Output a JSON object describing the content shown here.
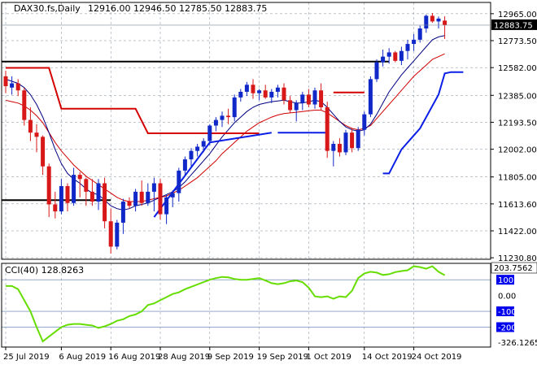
{
  "header": {
    "symbol": "DAX30.fs,Daily",
    "ohlc": "12916.00 12946.50 12785.50 12883.75"
  },
  "price_tag": "12883.75",
  "cci_tag": "203.7562",
  "colors": {
    "bull": "#1028c8",
    "bear": "#d81818",
    "fast_ma": "#000080",
    "slow_ma": "#d00000",
    "stop_red": "#d40000",
    "stop_blue": "#0a1ee6",
    "cci_line": "#66dd00",
    "cci_labels": "#0000cc",
    "level": "#000000",
    "grid": "#7f8c99"
  },
  "chart_data": [
    {
      "type": "candlestick",
      "title": "DAX30.fs,Daily",
      "x_tick_labels": [
        "25 Jul 2019",
        "6 Aug 2019",
        "16 Aug 2019",
        "28 Aug 2019",
        "9 Sep 2019",
        "19 Sep 2019",
        "1 Oct 2019",
        "14 Oct 2019",
        "24 Oct 2019"
      ],
      "x_tick_index": [
        0,
        9,
        17,
        25,
        33,
        41,
        49,
        58,
        66
      ],
      "y_tick_labels": [
        "12965.00",
        "12773.50",
        "12582.00",
        "12385.00",
        "12193.50",
        "12002.00",
        "11805.00",
        "11613.60",
        "11422.00",
        "11230.80"
      ],
      "y_tick_values": [
        12965.0,
        12773.5,
        12582.0,
        12385.0,
        12193.5,
        12002.0,
        11805.0,
        11613.6,
        11422.0,
        11230.8
      ],
      "ylim": [
        11220,
        13045
      ],
      "last_price": 12883.75,
      "ohlc": [
        [
          12520,
          12560,
          12400,
          12450
        ],
        [
          12440,
          12520,
          12390,
          12470
        ],
        [
          12470,
          12500,
          12380,
          12420
        ],
        [
          12420,
          12440,
          12170,
          12210
        ],
        [
          12210,
          12300,
          12060,
          12120
        ],
        [
          12120,
          12180,
          11980,
          12090
        ],
        [
          12090,
          12100,
          11820,
          11880
        ],
        [
          11880,
          11900,
          11520,
          11610
        ],
        [
          11610,
          11700,
          11510,
          11560
        ],
        [
          11560,
          11790,
          11540,
          11740
        ],
        [
          11740,
          11760,
          11560,
          11620
        ],
        [
          11620,
          11870,
          11600,
          11820
        ],
        [
          11820,
          11840,
          11660,
          11790
        ],
        [
          11790,
          11800,
          11600,
          11700
        ],
        [
          11700,
          11790,
          11600,
          11630
        ],
        [
          11630,
          11790,
          11570,
          11760
        ],
        [
          11760,
          11800,
          11440,
          11490
        ],
        [
          11490,
          11580,
          11260,
          11310
        ],
        [
          11310,
          11500,
          11290,
          11480
        ],
        [
          11480,
          11650,
          11400,
          11630
        ],
        [
          11630,
          11660,
          11580,
          11600
        ],
        [
          11600,
          11720,
          11560,
          11700
        ],
        [
          11700,
          11780,
          11600,
          11620
        ],
        [
          11620,
          11760,
          11600,
          11700
        ],
        [
          11700,
          11800,
          11560,
          11760
        ],
        [
          11760,
          11790,
          11500,
          11540
        ],
        [
          11540,
          11680,
          11470,
          11660
        ],
        [
          11660,
          11710,
          11590,
          11690
        ],
        [
          11690,
          11870,
          11630,
          11850
        ],
        [
          11850,
          11950,
          11810,
          11930
        ],
        [
          11930,
          12010,
          11870,
          11990
        ],
        [
          11990,
          12040,
          11950,
          12020
        ],
        [
          12020,
          12080,
          11980,
          12060
        ],
        [
          12060,
          12180,
          12030,
          12170
        ],
        [
          12170,
          12230,
          12130,
          12210
        ],
        [
          12210,
          12270,
          12160,
          12240
        ],
        [
          12240,
          12290,
          12180,
          12230
        ],
        [
          12230,
          12390,
          12200,
          12370
        ],
        [
          12370,
          12430,
          12340,
          12410
        ],
        [
          12410,
          12480,
          12380,
          12460
        ],
        [
          12460,
          12500,
          12360,
          12400
        ],
        [
          12400,
          12430,
          12350,
          12420
        ],
        [
          12420,
          12460,
          12360,
          12370
        ],
        [
          12370,
          12430,
          12330,
          12410
        ],
        [
          12410,
          12460,
          12370,
          12440
        ],
        [
          12440,
          12470,
          12320,
          12350
        ],
        [
          12350,
          12380,
          12260,
          12280
        ],
        [
          12280,
          12350,
          12200,
          12330
        ],
        [
          12330,
          12410,
          12280,
          12390
        ],
        [
          12390,
          12430,
          12300,
          12320
        ],
        [
          12320,
          12440,
          12290,
          12420
        ],
        [
          12420,
          12470,
          12280,
          12300
        ],
        [
          12300,
          12340,
          11940,
          11990
        ],
        [
          11990,
          12060,
          11880,
          12040
        ],
        [
          12040,
          12080,
          11950,
          11980
        ],
        [
          11980,
          12140,
          11960,
          12120
        ],
        [
          12120,
          12150,
          11980,
          12010
        ],
        [
          12010,
          12160,
          11990,
          12140
        ],
        [
          12140,
          12270,
          12100,
          12250
        ],
        [
          12250,
          12520,
          12230,
          12500
        ],
        [
          12500,
          12640,
          12480,
          12620
        ],
        [
          12620,
          12710,
          12590,
          12660
        ],
        [
          12660,
          12720,
          12610,
          12690
        ],
        [
          12690,
          12700,
          12620,
          12630
        ],
        [
          12630,
          12730,
          12600,
          12700
        ],
        [
          12700,
          12780,
          12640,
          12750
        ],
        [
          12750,
          12820,
          12700,
          12780
        ],
        [
          12780,
          12880,
          12760,
          12860
        ],
        [
          12860,
          12960,
          12830,
          12950
        ],
        [
          12950,
          12970,
          12900,
          12910
        ],
        [
          12910,
          12945,
          12860,
          12930
        ],
        [
          12916,
          12946.5,
          12785.5,
          12883.75
        ]
      ],
      "bull_indices": [
        1,
        9,
        11,
        15,
        18,
        19,
        21,
        23,
        24,
        26,
        27,
        28,
        29,
        30,
        31,
        32,
        33,
        34,
        35,
        37,
        38,
        39,
        41,
        43,
        44,
        47,
        48,
        50,
        53,
        55,
        57,
        58,
        59,
        60,
        61,
        62,
        64,
        65,
        66,
        67,
        68,
        70
      ],
      "fast_ma": [
        12500,
        12485,
        12470,
        12440,
        12390,
        12320,
        12230,
        12120,
        12000,
        11900,
        11830,
        11790,
        11760,
        11720,
        11690,
        11680,
        11640,
        11600,
        11580,
        11570,
        11580,
        11600,
        11610,
        11620,
        11640,
        11660,
        11680,
        11700,
        11730,
        11770,
        11820,
        11870,
        11920,
        11970,
        12030,
        12090,
        12140,
        12190,
        12230,
        12270,
        12300,
        12320,
        12330,
        12340,
        12345,
        12350,
        12340,
        12330,
        12330,
        12340,
        12350,
        12340,
        12300,
        12250,
        12200,
        12160,
        12140,
        12130,
        12140,
        12180,
        12250,
        12330,
        12410,
        12470,
        12530,
        12580,
        12630,
        12680,
        12730,
        12780,
        12800,
        12810
      ],
      "slow_ma": [
        12350,
        12340,
        12330,
        12310,
        12280,
        12240,
        12190,
        12120,
        12050,
        11990,
        11940,
        11890,
        11850,
        11810,
        11780,
        11750,
        11720,
        11690,
        11660,
        11640,
        11630,
        11630,
        11630,
        11640,
        11650,
        11660,
        11670,
        11690,
        11710,
        11740,
        11770,
        11800,
        11840,
        11880,
        11920,
        11970,
        12010,
        12050,
        12090,
        12130,
        12160,
        12190,
        12210,
        12230,
        12245,
        12255,
        12260,
        12265,
        12270,
        12275,
        12280,
        12280,
        12260,
        12230,
        12200,
        12170,
        12150,
        12140,
        12150,
        12170,
        12220,
        12270,
        12320,
        12370,
        12420,
        12470,
        12520,
        12560,
        12600,
        12640,
        12660,
        12680
      ],
      "stop_segments": [
        {
          "color": "red",
          "points": [
            [
              0,
              12580
            ],
            [
              7,
              12580
            ],
            [
              9,
              12290
            ],
            [
              21,
              12290
            ],
            [
              23,
              12115
            ],
            [
              41,
              12115
            ]
          ]
        },
        {
          "color": "blue",
          "points": [
            [
              44,
              12120
            ],
            [
              52,
              12120
            ]
          ]
        },
        {
          "color": "red",
          "points": [
            [
              53,
              12405
            ],
            [
              58,
              12405
            ]
          ]
        },
        {
          "color": "blue",
          "points": [
            [
              24,
              11520
            ],
            [
              33,
              12050
            ],
            [
              43,
              12120
            ]
          ]
        },
        {
          "color": "blue",
          "points": [
            [
              61,
              11830
            ],
            [
              62,
              11830
            ],
            [
              64,
              12000
            ],
            [
              67,
              12150
            ],
            [
              70,
              12390
            ],
            [
              71,
              12540
            ],
            [
              72,
              12550
            ],
            [
              74,
              12550
            ]
          ]
        }
      ],
      "support_levels": [
        {
          "value": 12625,
          "from_index": 0,
          "to_index": 62
        },
        {
          "value": 11640,
          "from_index": 0,
          "to_index": 17
        }
      ]
    },
    {
      "type": "line",
      "title": "CCI(40) 128.8263",
      "series_name": "CCI(40)",
      "last_value": 128.8263,
      "y_tick_labels": [
        "203.7562",
        "100",
        "0.00",
        "-100",
        "-200",
        "-326.1265"
      ],
      "y_tick_values": [
        203.7562,
        100,
        0,
        -100,
        -200,
        -326.1265
      ],
      "highlighted_levels": [
        100,
        -100,
        -200
      ],
      "ylim": [
        -326.1265,
        203.7562
      ],
      "values": [
        60,
        60,
        40,
        -30,
        -100,
        -200,
        -290,
        -260,
        -230,
        -200,
        -185,
        -180,
        -180,
        -185,
        -190,
        -205,
        -195,
        -180,
        -160,
        -150,
        -130,
        -120,
        -100,
        -60,
        -50,
        -30,
        -10,
        10,
        20,
        40,
        55,
        70,
        85,
        100,
        110,
        118,
        115,
        105,
        100,
        100,
        105,
        110,
        95,
        78,
        72,
        78,
        90,
        95,
        85,
        50,
        -5,
        -10,
        -5,
        -20,
        -5,
        -10,
        30,
        110,
        140,
        150,
        145,
        130,
        135,
        148,
        155,
        160,
        185,
        180,
        170,
        185,
        150,
        128.8263
      ]
    }
  ]
}
